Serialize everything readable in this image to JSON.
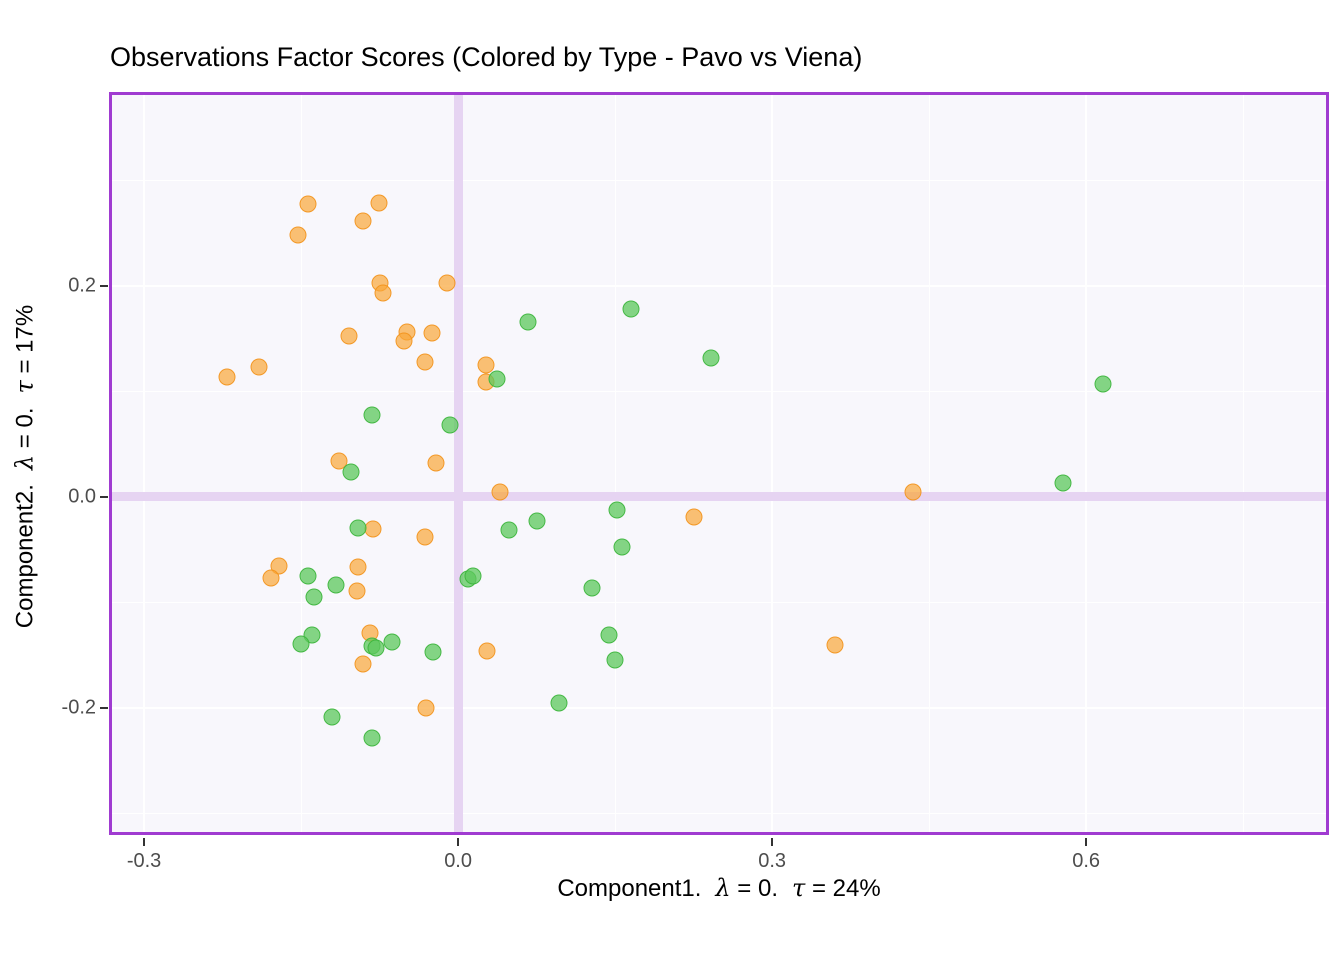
{
  "title": "Observations Factor Scores (Colored by Type - Pavo vs Viena)",
  "x_axis": {
    "label_name": "Component1.",
    "label_lambda_symbol": "λ",
    "label_lambda_rest": " = 0.",
    "label_tau_symbol": "τ",
    "label_tau_rest": " = 24%",
    "tick_labels": [
      "-0.3",
      "0.0",
      "0.3",
      "0.6"
    ],
    "tick_values": [
      -0.3,
      0.0,
      0.3,
      0.6
    ],
    "minor_tick_values": [
      -0.15,
      0.15,
      0.45,
      0.75
    ],
    "range": [
      -0.3335,
      0.832
    ]
  },
  "y_axis": {
    "label_name": "Component2.",
    "label_lambda_symbol": "λ",
    "label_lambda_rest": " = 0.",
    "label_tau_symbol": "τ",
    "label_tau_rest": " = 17%",
    "tick_labels": [
      "0.2",
      "0.0",
      "-0.2"
    ],
    "tick_values": [
      0.2,
      0.0,
      -0.2
    ],
    "minor_tick_values": [
      0.3,
      0.1,
      -0.1,
      -0.3
    ],
    "range": [
      -0.3207,
      0.3836
    ]
  },
  "style": {
    "plot_bg": "#F8F7FC",
    "border_color": "#A03BD1",
    "gridline_color": "#ffffff",
    "zero_band_color": "#E6D4F2",
    "tick_mark_color": "#333333",
    "tick_label_color": "#4d4d4d",
    "orange_fill": "rgba(249,166,57,0.70)",
    "orange_stroke": "rgba(242,146,25,0.85)",
    "green_fill": "rgba(92,200,92,0.75)",
    "green_stroke": "rgba(58,180,58,0.85)"
  },
  "chart_data": {
    "type": "scatter",
    "title": "Observations Factor Scores (Colored by Type - Pavo vs Viena)",
    "xlabel": "Component1.  λ = 0.  τ = 24%",
    "ylabel": "Component2.  λ = 0.  τ = 17%",
    "xlim": [
      -0.3335,
      0.832
    ],
    "ylim": [
      -0.3207,
      0.3836
    ],
    "grid": true,
    "legend": "none",
    "series": [
      {
        "name": "orange",
        "color": "#F9A639",
        "points": [
          [
            -0.143,
            0.277
          ],
          [
            -0.076,
            0.278
          ],
          [
            -0.091,
            0.261
          ],
          [
            -0.153,
            0.248
          ],
          [
            -0.075,
            0.203
          ],
          [
            -0.072,
            0.193
          ],
          [
            -0.011,
            0.203
          ],
          [
            -0.104,
            0.152
          ],
          [
            -0.049,
            0.156
          ],
          [
            -0.052,
            0.148
          ],
          [
            -0.025,
            0.155
          ],
          [
            -0.032,
            0.128
          ],
          [
            -0.19,
            0.123
          ],
          [
            -0.221,
            0.113
          ],
          [
            0.027,
            0.125
          ],
          [
            0.027,
            0.109
          ],
          [
            -0.114,
            0.034
          ],
          [
            -0.021,
            0.032
          ],
          [
            0.04,
            0.004
          ],
          [
            0.435,
            0.004
          ],
          [
            -0.081,
            -0.031
          ],
          [
            -0.032,
            -0.038
          ],
          [
            0.225,
            -0.019
          ],
          [
            -0.171,
            -0.066
          ],
          [
            -0.179,
            -0.077
          ],
          [
            -0.096,
            -0.067
          ],
          [
            -0.097,
            -0.089
          ],
          [
            -0.084,
            -0.129
          ],
          [
            -0.091,
            -0.159
          ],
          [
            0.028,
            -0.146
          ],
          [
            -0.031,
            -0.2
          ],
          [
            0.36,
            -0.141
          ]
        ]
      },
      {
        "name": "green",
        "color": "#5CC85C",
        "points": [
          [
            0.067,
            0.166
          ],
          [
            0.165,
            0.178
          ],
          [
            0.242,
            0.131
          ],
          [
            0.616,
            0.107
          ],
          [
            -0.082,
            0.077
          ],
          [
            -0.008,
            0.068
          ],
          [
            0.037,
            0.112
          ],
          [
            -0.102,
            0.023
          ],
          [
            0.578,
            0.013
          ],
          [
            0.152,
            -0.013
          ],
          [
            0.075,
            -0.023
          ],
          [
            0.049,
            -0.032
          ],
          [
            0.157,
            -0.048
          ],
          [
            -0.096,
            -0.03
          ],
          [
            -0.143,
            -0.075
          ],
          [
            -0.117,
            -0.084
          ],
          [
            -0.138,
            -0.095
          ],
          [
            0.128,
            -0.087
          ],
          [
            0.009,
            -0.078
          ],
          [
            0.014,
            -0.075
          ],
          [
            -0.14,
            -0.131
          ],
          [
            -0.15,
            -0.14
          ],
          [
            -0.063,
            -0.138
          ],
          [
            -0.082,
            -0.142
          ],
          [
            -0.078,
            -0.143
          ],
          [
            -0.024,
            -0.147
          ],
          [
            0.144,
            -0.131
          ],
          [
            0.096,
            -0.196
          ],
          [
            0.15,
            -0.155
          ],
          [
            -0.12,
            -0.209
          ],
          [
            -0.082,
            -0.229
          ]
        ]
      }
    ]
  }
}
